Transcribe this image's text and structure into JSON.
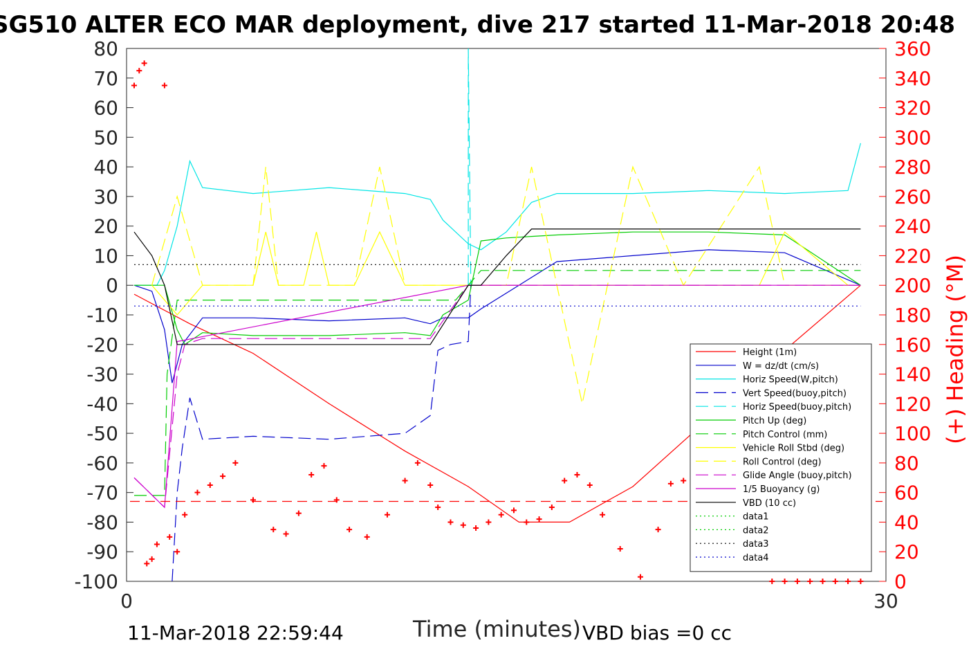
{
  "chart_data": {
    "type": "line",
    "title": "SG510 ALTER ECO MAR deployment, dive 217 started 11-Mar-2018 20:48",
    "xlabel": "Time (minutes)",
    "ylabel_right": "(+) Heading (°M)",
    "xlim": [
      0,
      30
    ],
    "ylim": [
      -100,
      80
    ],
    "ylim_right": [
      0,
      360
    ],
    "x_ticks": [
      "0",
      "30"
    ],
    "y_ticks": [
      "80",
      "70",
      "60",
      "50",
      "40",
      "30",
      "20",
      "10",
      "0",
      "-10",
      "-20",
      "-30",
      "-40",
      "-50",
      "-60",
      "-70",
      "-80",
      "-90",
      "-100"
    ],
    "y_right_ticks": [
      "360",
      "340",
      "320",
      "300",
      "280",
      "260",
      "240",
      "220",
      "200",
      "180",
      "160",
      "140",
      "120",
      "100",
      "80",
      "60",
      "40",
      "20",
      "0"
    ],
    "footer_left": "11-Mar-2018 22:59:44",
    "footer_right": "VBD bias =0 cc",
    "legend_position": "lower-right",
    "colors": {
      "height": "#ff0000",
      "w": "#0000cc",
      "horiz": "#00e5e5",
      "pitch": "#00cc00",
      "roll": "#ffff00",
      "glide": "#cc00cc",
      "vbd": "#000000",
      "heading": "#ff0000"
    },
    "series": [
      {
        "name": "Height (1m)",
        "color": "#ff0000",
        "style": "solid",
        "x": [
          0.3,
          2.5,
          5,
          8,
          11,
          13.5,
          15.5,
          17.5,
          20,
          23,
          26,
          29
        ],
        "y": [
          -3,
          -13,
          -23,
          -40,
          -56,
          -68,
          -80,
          -80,
          -68,
          -45,
          -22,
          0
        ]
      },
      {
        "name": "W = dz/dt (cm/s)",
        "color": "#0000cc",
        "style": "solid",
        "x": [
          0.3,
          1,
          1.5,
          1.8,
          2.2,
          3,
          5,
          8,
          11,
          12,
          12.5,
          13.5,
          14,
          15.5,
          17,
          20,
          23,
          26,
          29
        ],
        "y": [
          0,
          -2,
          -15,
          -33,
          -20,
          -11,
          -11,
          -12,
          -11,
          -13,
          -11,
          -11,
          -8,
          0,
          8,
          10,
          12,
          11,
          0
        ]
      },
      {
        "name": "Horiz Speed(W,pitch)",
        "color": "#00e5e5",
        "style": "solid",
        "x": [
          0.3,
          1.2,
          1.5,
          2,
          2.5,
          3,
          5,
          8,
          11,
          12,
          12.5,
          13.5,
          14,
          15,
          16,
          17,
          20,
          23,
          26,
          28.5,
          29
        ],
        "y": [
          0,
          0,
          5,
          20,
          42,
          33,
          31,
          33,
          31,
          29,
          22,
          14,
          12,
          18,
          28,
          31,
          31,
          32,
          31,
          32,
          48
        ]
      },
      {
        "name": "Vert Speed(buoy,pitch)",
        "color": "#0000cc",
        "style": "dashed",
        "x": [
          1.8,
          2,
          2.2,
          2.5,
          3,
          5,
          8,
          11,
          12,
          12.3,
          12.8,
          13.5,
          13.6,
          14
        ],
        "y": [
          -100,
          -70,
          -55,
          -38,
          -52,
          -51,
          -52,
          -50,
          -44,
          -22,
          -20,
          -19,
          0,
          0
        ]
      },
      {
        "name": "Horiz Speed(buoy,pitch)",
        "color": "#00e5e5",
        "style": "dashed",
        "x": [
          13.5,
          13.5,
          13.6
        ],
        "y": [
          0,
          80,
          0
        ]
      },
      {
        "name": "Pitch Up (deg)",
        "color": "#00cc00",
        "style": "solid",
        "x": [
          0.3,
          1.5,
          2,
          2.3,
          3,
          5,
          8,
          11,
          12,
          12.5,
          13.5,
          14,
          15,
          17,
          20,
          23,
          26,
          29
        ],
        "y": [
          0,
          0,
          -15,
          -20,
          -16,
          -17,
          -17,
          -16,
          -17,
          -10,
          -5,
          15,
          16,
          17,
          18,
          18,
          17,
          0
        ]
      },
      {
        "name": "Pitch Control (mm)",
        "color": "#00cc00",
        "style": "dashed",
        "x": [
          0.3,
          1.5,
          1.6,
          2,
          13,
          13.5,
          14,
          29
        ],
        "y": [
          -71,
          -71,
          -30,
          -5,
          -5,
          0,
          5,
          5
        ]
      },
      {
        "name": "Vehicle Roll Stbd (deg)",
        "color": "#ffff00",
        "style": "solid",
        "x": [
          1,
          2,
          3,
          5,
          5.5,
          6,
          7,
          7.5,
          8,
          9,
          10,
          11,
          11.5,
          12,
          12.5,
          13,
          15,
          17,
          18,
          21,
          22,
          25,
          26,
          28.5,
          29
        ],
        "y": [
          0,
          -10,
          0,
          0,
          18,
          0,
          0,
          18,
          0,
          0,
          18,
          0,
          0,
          0,
          0,
          0,
          0,
          0,
          0,
          0,
          0,
          0,
          18,
          0,
          0
        ]
      },
      {
        "name": "Roll Control (deg)",
        "color": "#ffff00",
        "style": "dashed",
        "x": [
          1,
          2,
          3,
          5,
          5.5,
          6,
          9,
          10,
          11,
          12,
          15,
          16,
          17,
          18,
          20,
          22,
          25,
          26,
          29
        ],
        "y": [
          0,
          30,
          0,
          0,
          40,
          0,
          0,
          40,
          0,
          0,
          0,
          40,
          0,
          -40,
          40,
          0,
          40,
          0,
          0
        ]
      },
      {
        "name": "Glide Angle (buoy,pitch)",
        "color": "#cc00cc",
        "style": "dashed",
        "x": [
          0.3,
          1.5,
          2,
          2.3,
          3,
          8,
          11,
          12,
          13.5,
          14,
          29
        ],
        "y": [
          -65,
          -75,
          -30,
          -20,
          -18,
          -18,
          -18,
          -18,
          0,
          0,
          0
        ]
      },
      {
        "name": "1/5 Buoyancy (g)",
        "color": "#cc00cc",
        "style": "solid",
        "x": [
          0.3,
          1.5,
          2,
          13.5,
          14,
          29
        ],
        "y": [
          -65,
          -75,
          -19,
          0,
          0,
          0
        ]
      },
      {
        "name": "VBD (10 cc)",
        "color": "#000000",
        "style": "solid",
        "x": [
          0.3,
          1,
          1.5,
          2,
          5,
          11,
          12,
          13.5,
          14,
          15,
          16,
          20,
          25,
          29
        ],
        "y": [
          18,
          10,
          0,
          -20,
          -20,
          -20,
          -20,
          0,
          0,
          10,
          19,
          19,
          19,
          19
        ]
      },
      {
        "name": "data1",
        "color": "#00cc00",
        "style": "dotted",
        "x": [],
        "y": []
      },
      {
        "name": "data2",
        "color": "#00cc00",
        "style": "dotted",
        "x": [],
        "y": []
      },
      {
        "name": "data3",
        "color": "#000000",
        "style": "dotted",
        "x": [
          0.3,
          29
        ],
        "y": [
          7,
          7
        ]
      },
      {
        "name": "data4",
        "color": "#0000cc",
        "style": "dotted",
        "x": [
          0.3,
          29
        ],
        "y": [
          -7,
          -7
        ]
      }
    ],
    "heading": {
      "style": "plus-markers",
      "color": "#ff0000",
      "x": [
        0.3,
        0.5,
        0.7,
        0.8,
        1.0,
        1.2,
        1.5,
        1.7,
        2.0,
        2.3,
        2.8,
        3.3,
        3.8,
        4.3,
        5.0,
        5.8,
        6.3,
        6.8,
        7.3,
        7.8,
        8.3,
        8.8,
        9.5,
        10.3,
        11.0,
        11.5,
        12.0,
        12.3,
        12.8,
        13.3,
        13.8,
        14.3,
        14.8,
        15.3,
        15.8,
        16.3,
        16.8,
        17.3,
        17.8,
        18.3,
        18.8,
        19.5,
        20.3,
        21.0,
        21.5,
        22.0,
        22.5,
        23.0,
        23.5,
        24.0,
        24.5,
        25.0,
        25.5,
        26.0,
        26.5,
        27.0,
        27.5,
        28.0,
        28.5,
        29.0
      ],
      "y": [
        335,
        345,
        350,
        12,
        15,
        25,
        335,
        30,
        20,
        45,
        60,
        65,
        71,
        80,
        55,
        35,
        32,
        46,
        72,
        78,
        55,
        35,
        30,
        45,
        68,
        80,
        65,
        50,
        40,
        38,
        36,
        40,
        45,
        48,
        40,
        42,
        50,
        68,
        72,
        65,
        45,
        22,
        3,
        35,
        66,
        68,
        62,
        55,
        45,
        38,
        40,
        60,
        0,
        0,
        0,
        0,
        0,
        0,
        0,
        0
      ]
    },
    "depth_target": {
      "color": "#ff0000",
      "style": "dashed",
      "y": -73
    }
  }
}
